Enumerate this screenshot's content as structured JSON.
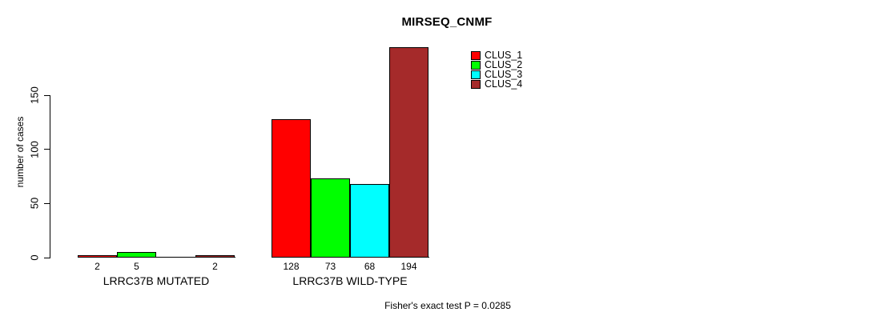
{
  "chart_data": {
    "type": "bar",
    "title": "MIRSEQ_CNMF",
    "ylabel": "number of cases",
    "xlabel": "",
    "yticks": [
      0,
      50,
      100,
      150
    ],
    "ylim": [
      0,
      195
    ],
    "grid": false,
    "legend_position": "top-right",
    "categories": [
      "LRRC37B MUTATED",
      "LRRC37B WILD-TYPE"
    ],
    "series": [
      {
        "name": "CLUS_1",
        "color": "#FF0000",
        "values": [
          2,
          128
        ]
      },
      {
        "name": "CLUS_2",
        "color": "#00FF00",
        "values": [
          5,
          73
        ]
      },
      {
        "name": "CLUS_3",
        "color": "#00FFFF",
        "values": [
          0,
          68
        ]
      },
      {
        "name": "CLUS_4",
        "color": "#A52A2A",
        "values": [
          2,
          194
        ]
      }
    ],
    "bar_value_labels": [
      [
        "2",
        "5",
        "",
        "2"
      ],
      [
        "128",
        "73",
        "68",
        "194"
      ]
    ],
    "annotation": "Fisher's exact test P = 0.0285"
  }
}
